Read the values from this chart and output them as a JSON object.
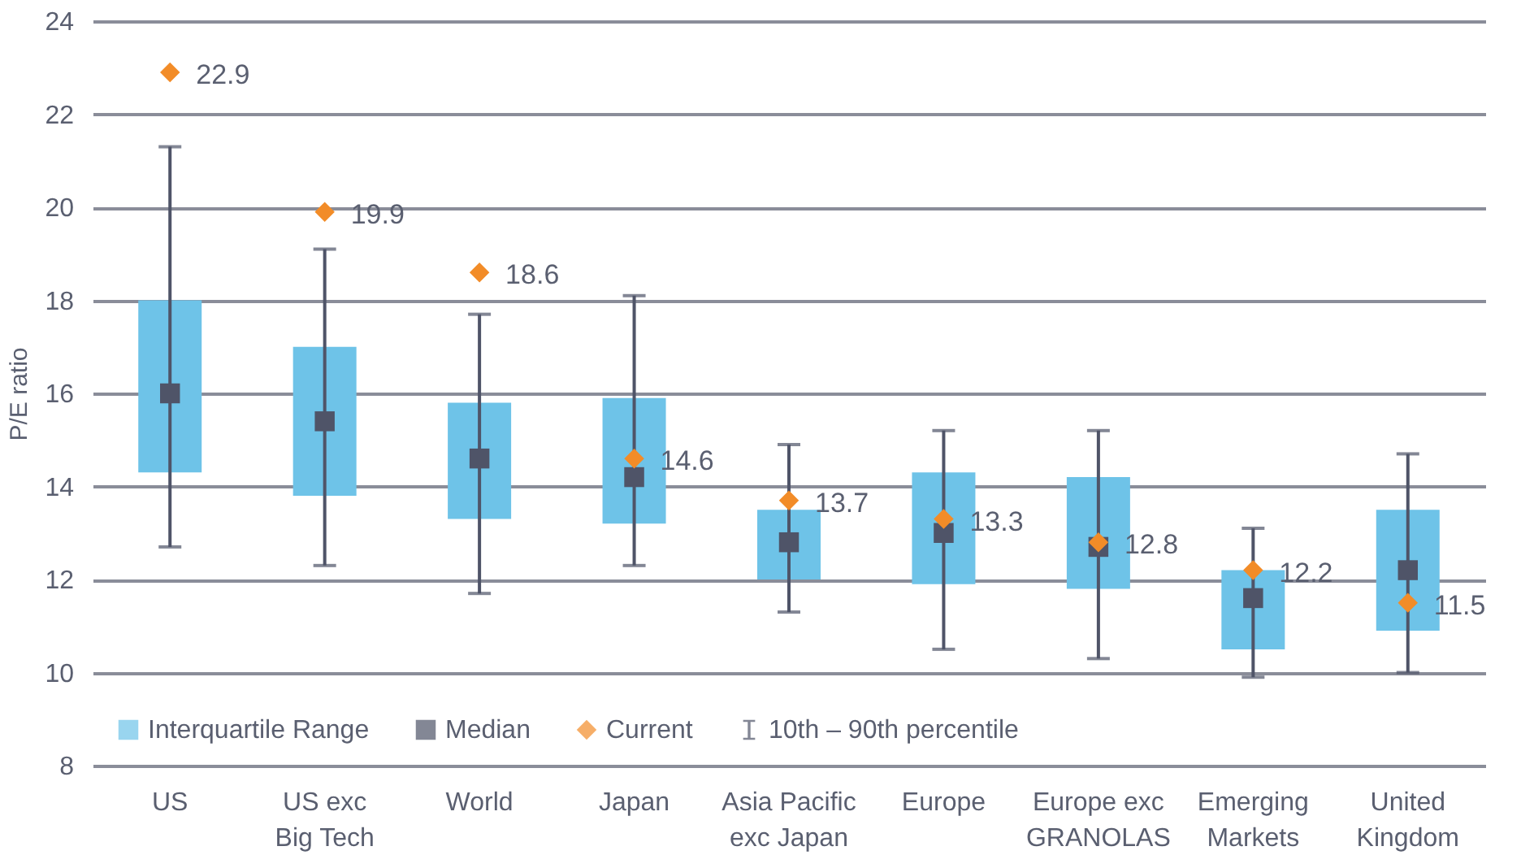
{
  "chart_data": {
    "type": "bar",
    "ylabel": "P/E ratio",
    "categories": [
      "US",
      "US exc\nBig Tech",
      "World",
      "Japan",
      "Asia Pacific\nexc Japan",
      "Europe",
      "Europe exc\nGRANOLAS",
      "Emerging\nMarkets",
      "United\nKingdom"
    ],
    "series": [
      {
        "name": "Interquartile Range",
        "color": "#6ec3e8",
        "base": [
          14.3,
          13.8,
          13.3,
          13.2,
          12.0,
          11.9,
          11.8,
          10.5,
          10.9
        ],
        "values": [
          3.7,
          3.2,
          2.5,
          2.7,
          1.5,
          2.4,
          2.4,
          1.7,
          2.6
        ]
      },
      {
        "type": "scatter",
        "name": "Median",
        "color": "#4f5468",
        "marker": "square",
        "values": [
          16.0,
          15.4,
          14.6,
          14.2,
          12.8,
          13.0,
          12.7,
          11.6,
          12.2
        ],
        "errors": [
          [
            12.7,
            21.3
          ],
          [
            12.3,
            19.1
          ],
          [
            11.7,
            17.7
          ],
          [
            12.3,
            18.1
          ],
          [
            11.3,
            14.9
          ],
          [
            10.5,
            15.2
          ],
          [
            10.3,
            15.2
          ],
          [
            9.9,
            13.1
          ],
          [
            10.0,
            14.7
          ]
        ]
      },
      {
        "type": "scatter",
        "name": "Current",
        "color": "#f28c28",
        "marker": "diamond",
        "values": [
          22.9,
          19.9,
          18.6,
          14.6,
          13.7,
          13.3,
          12.8,
          12.2,
          11.5
        ],
        "value_labels": [
          "22.9",
          "19.9",
          "18.6",
          "14.6",
          "13.7",
          "13.3",
          "12.8",
          "12.2",
          "11.5"
        ]
      }
    ],
    "annotations": [
      "10th – 90th percentile"
    ],
    "ylim": [
      8,
      24
    ],
    "yticks": [
      8,
      10,
      12,
      14,
      16,
      18,
      20,
      22,
      24
    ],
    "grid": true,
    "legend": "bottom left"
  }
}
